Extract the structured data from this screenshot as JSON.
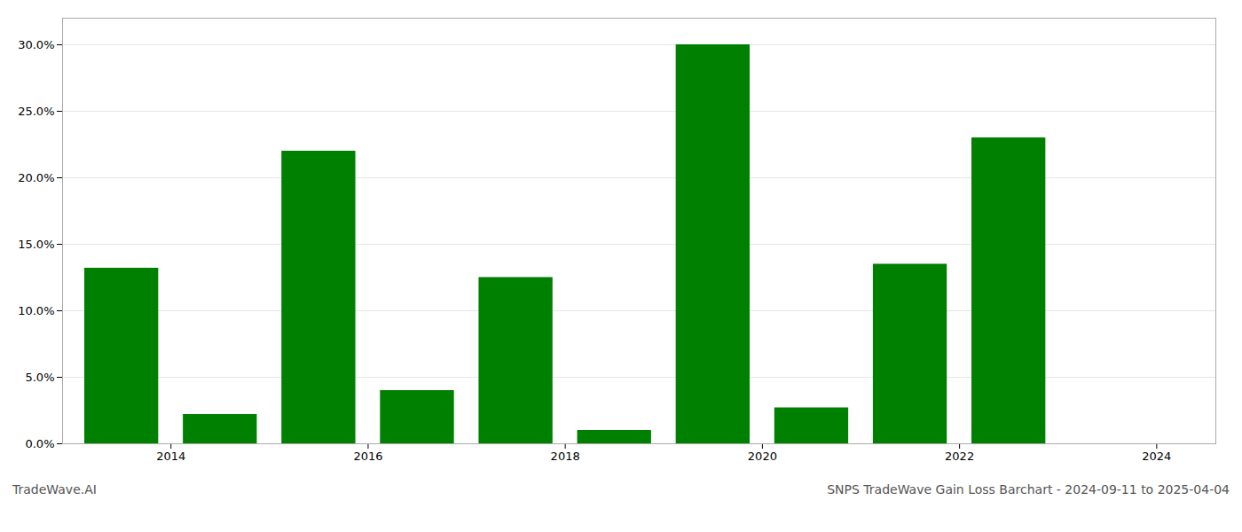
{
  "chart_data": {
    "type": "bar",
    "title": "SNPS TradeWave Gain Loss Barchart - 2024-09-11 to 2025-04-04",
    "annotations": [
      "TradeWave.AI"
    ],
    "x": [
      2013,
      2014,
      2015,
      2016,
      2017,
      2018,
      2019,
      2020,
      2021,
      2022,
      2023
    ],
    "values": [
      0.132,
      0.022,
      0.22,
      0.04,
      0.125,
      0.01,
      0.3,
      0.027,
      0.135,
      0.23,
      0.0
    ],
    "color": "#008000",
    "xlim": [
      2012.4,
      2024.1
    ],
    "xticks": [
      {
        "value": 2013.5,
        "label": "2014"
      },
      {
        "value": 2015.5,
        "label": "2016"
      },
      {
        "value": 2017.5,
        "label": "2018"
      },
      {
        "value": 2019.5,
        "label": "2020"
      },
      {
        "value": 2021.5,
        "label": "2022"
      },
      {
        "value": 2023.5,
        "label": "2024"
      }
    ],
    "ylim": [
      0,
      0.32
    ],
    "yticks": [
      {
        "value": 0.0,
        "label": "0.0%"
      },
      {
        "value": 0.05,
        "label": "5.0%"
      },
      {
        "value": 0.1,
        "label": "10.0%"
      },
      {
        "value": 0.15,
        "label": "15.0%"
      },
      {
        "value": 0.2,
        "label": "20.0%"
      },
      {
        "value": 0.25,
        "label": "25.0%"
      },
      {
        "value": 0.3,
        "label": "30.0%"
      }
    ],
    "grid": true
  }
}
